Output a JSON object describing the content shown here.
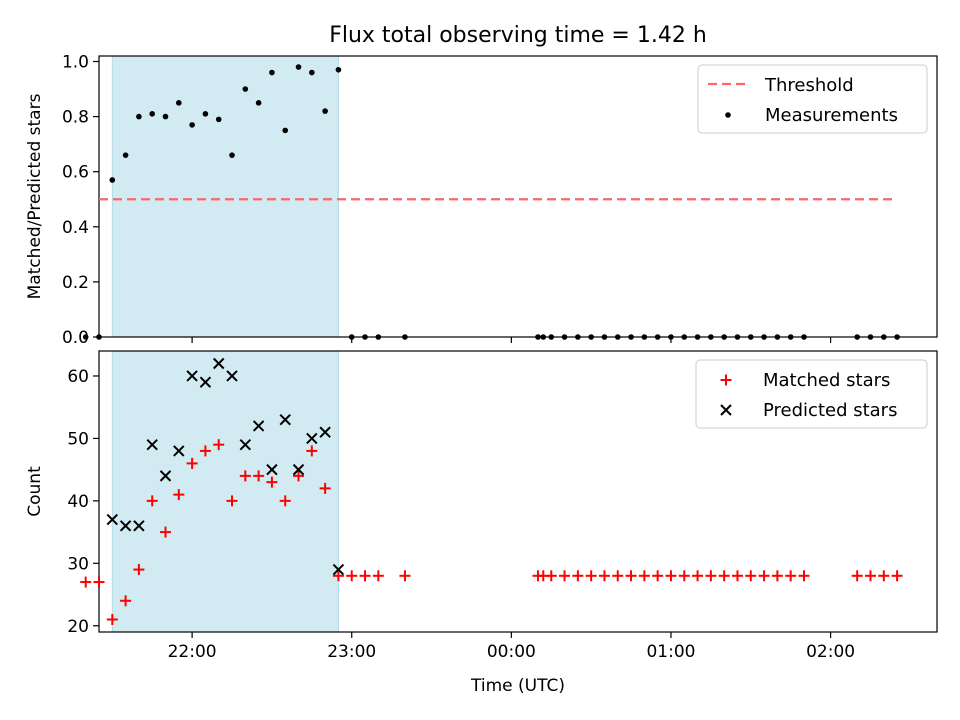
{
  "title": "Flux total observing time = 1.42 h",
  "chart_data": [
    {
      "type": "scatter",
      "ylabel": "Matched/Predicted stars",
      "xlim": [
        "21:25",
        "02:40"
      ],
      "ylim": [
        0,
        1.02
      ],
      "yticks": [
        "0.0",
        "0.2",
        "0.4",
        "0.6",
        "0.8",
        "1.0"
      ],
      "yticks_values": [
        0,
        0.2,
        0.4,
        0.6,
        0.8,
        1.0
      ],
      "shaded_region": {
        "start": "21:30",
        "end": "22:55",
        "color": "#add8e6"
      },
      "threshold": {
        "label": "Threshold",
        "value": 0.5,
        "x": [
          "21:25",
          "02:25"
        ],
        "color": "#ff6666"
      },
      "legend": {
        "placement": "top-right",
        "entries": [
          "Threshold",
          "Measurements"
        ]
      },
      "series": [
        {
          "name": "Measurements",
          "x": [
            "21:20",
            "21:25",
            "21:30",
            "21:35",
            "21:40",
            "21:45",
            "21:50",
            "21:55",
            "22:00",
            "22:05",
            "22:10",
            "22:15",
            "22:20",
            "22:25",
            "22:30",
            "22:35",
            "22:40",
            "22:45",
            "22:50",
            "22:55",
            "23:00",
            "23:05",
            "23:10",
            "23:20",
            "00:10",
            "00:12",
            "00:15",
            "00:20",
            "00:25",
            "00:30",
            "00:35",
            "00:40",
            "00:45",
            "00:50",
            "00:55",
            "01:00",
            "01:05",
            "01:10",
            "01:15",
            "01:20",
            "01:25",
            "01:30",
            "01:35",
            "01:40",
            "01:45",
            "01:50",
            "02:10",
            "02:15",
            "02:20",
            "02:25"
          ],
          "y": [
            0,
            0,
            0.57,
            0.66,
            0.8,
            0.81,
            0.8,
            0.85,
            0.77,
            0.81,
            0.79,
            0.66,
            0.9,
            0.85,
            0.96,
            0.75,
            0.98,
            0.96,
            0.82,
            0.97,
            0,
            0,
            0,
            0,
            0,
            0,
            0,
            0,
            0,
            0,
            0,
            0,
            0,
            0,
            0,
            0,
            0,
            0,
            0,
            0,
            0,
            0,
            0,
            0,
            0,
            0,
            0,
            0,
            0,
            0
          ],
          "color": "#000000"
        }
      ]
    },
    {
      "type": "scatter",
      "xlabel": "Time (UTC)",
      "ylabel": "Count",
      "ylim": [
        19,
        64
      ],
      "yticks": [
        "20",
        "30",
        "40",
        "50",
        "60"
      ],
      "yticks_values": [
        20,
        30,
        40,
        50,
        60
      ],
      "xticks": [
        "22:00",
        "23:00",
        "00:00",
        "01:00",
        "02:00"
      ],
      "shaded_region": {
        "start": "21:30",
        "end": "22:55",
        "color": "#add8e6"
      },
      "legend": {
        "placement": "top-right",
        "entries": [
          "Matched stars",
          "Predicted stars"
        ]
      },
      "series": [
        {
          "name": "Matched stars",
          "x": [
            "21:20",
            "21:25",
            "21:30",
            "21:35",
            "21:40",
            "21:45",
            "21:50",
            "21:55",
            "22:00",
            "22:05",
            "22:10",
            "22:15",
            "22:20",
            "22:25",
            "22:30",
            "22:35",
            "22:40",
            "22:45",
            "22:50",
            "22:55",
            "23:00",
            "23:05",
            "23:10",
            "23:20",
            "00:10",
            "00:12",
            "00:15",
            "00:20",
            "00:25",
            "00:30",
            "00:35",
            "00:40",
            "00:45",
            "00:50",
            "00:55",
            "01:00",
            "01:05",
            "01:10",
            "01:15",
            "01:20",
            "01:25",
            "01:30",
            "01:35",
            "01:40",
            "01:45",
            "01:50",
            "02:10",
            "02:15",
            "02:20",
            "02:25"
          ],
          "y": [
            27,
            27,
            21,
            24,
            29,
            40,
            35,
            41,
            46,
            48,
            49,
            40,
            44,
            44,
            43,
            40,
            44,
            48,
            42,
            28,
            28,
            28,
            28,
            28,
            28,
            28,
            28,
            28,
            28,
            28,
            28,
            28,
            28,
            28,
            28,
            28,
            28,
            28,
            28,
            28,
            28,
            28,
            28,
            28,
            28,
            28,
            28,
            28,
            28,
            28
          ],
          "color": "#ff0000",
          "marker": "+"
        },
        {
          "name": "Predicted stars",
          "x": [
            "21:30",
            "21:35",
            "21:40",
            "21:45",
            "21:50",
            "21:55",
            "22:00",
            "22:05",
            "22:10",
            "22:15",
            "22:20",
            "22:25",
            "22:30",
            "22:35",
            "22:40",
            "22:45",
            "22:50",
            "22:55"
          ],
          "y": [
            37,
            36,
            36,
            49,
            44,
            48,
            60,
            59,
            62,
            60,
            49,
            52,
            45,
            53,
            45,
            50,
            51,
            29
          ],
          "color": "#000000",
          "marker": "x"
        }
      ]
    }
  ]
}
